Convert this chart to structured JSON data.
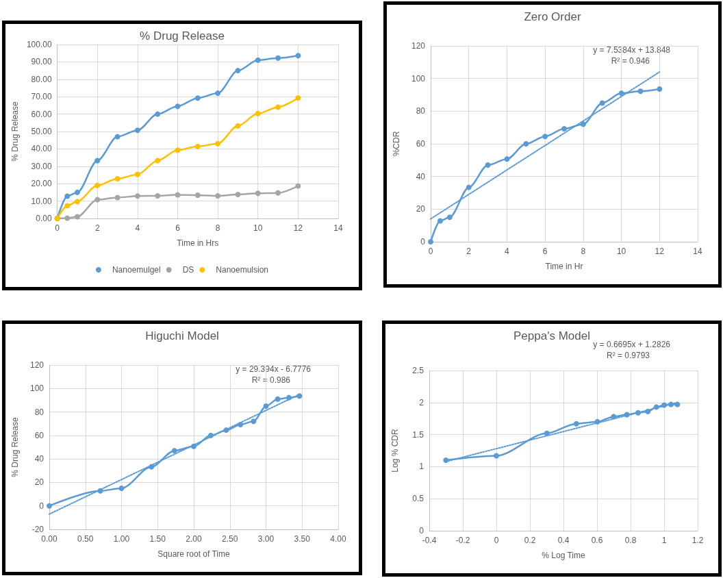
{
  "chart_data": [
    {
      "type": "line",
      "title": "% Drug Release",
      "xlabel": "Time in Hrs",
      "ylabel": "% Drug Release",
      "xlim": [
        0,
        14
      ],
      "xticks": [
        0,
        2,
        4,
        6,
        8,
        10,
        12,
        14
      ],
      "ylim": [
        0,
        100
      ],
      "yticks": [
        {
          "value": 0,
          "label": "0.00"
        },
        {
          "value": 10,
          "label": "10.00"
        },
        {
          "value": 20,
          "label": "20.00"
        },
        {
          "value": 30,
          "label": "30.00"
        },
        {
          "value": 40,
          "label": "40.00"
        },
        {
          "value": 50,
          "label": "50.00"
        },
        {
          "value": 60,
          "label": "60.00"
        },
        {
          "value": 70,
          "label": "70.00"
        },
        {
          "value": 80,
          "label": "80.00"
        },
        {
          "value": 90,
          "label": "90.00"
        },
        {
          "value": 100,
          "label": "100.00"
        }
      ],
      "grid": true,
      "legend": "bottom",
      "marker": "circle",
      "line_style": "solid",
      "x": [
        0,
        0.5,
        1,
        2,
        3,
        4,
        5,
        6,
        7,
        8,
        9,
        10,
        11,
        12
      ],
      "series": [
        {
          "name": "Nanoemulgel",
          "color": "#5b9bd5",
          "values": [
            0,
            12.8,
            15,
            33.3,
            47,
            50.7,
            60,
            64.5,
            69.2,
            72,
            85,
            91,
            92.2,
            93.6
          ]
        },
        {
          "name": "DS",
          "color": "#a5a5a5",
          "values": [
            0,
            0.2,
            1,
            10.8,
            12,
            12.9,
            13,
            13.6,
            13.4,
            13,
            13.8,
            14.5,
            14.7,
            18.7
          ]
        },
        {
          "name": "Nanoemulsion",
          "color": "#ffc000",
          "values": [
            0,
            7.3,
            9.7,
            19,
            22.8,
            25.3,
            33.3,
            39.3,
            41.4,
            43,
            53.2,
            60.3,
            64,
            69.3
          ]
        }
      ]
    },
    {
      "type": "line",
      "title": "Zero Order",
      "xlabel": "Time in Hr",
      "ylabel": "%CDR",
      "xlim": [
        0,
        14
      ],
      "xticks": [
        0,
        2,
        4,
        6,
        8,
        10,
        12,
        14
      ],
      "ylim": [
        0,
        120
      ],
      "yticks": [
        0,
        20,
        40,
        60,
        80,
        100,
        120
      ],
      "grid": true,
      "legend": false,
      "marker": "circle",
      "line_style": "solid",
      "annotations": [
        "y = 7.5384x + 13.848",
        "R² = 0.946"
      ],
      "series": [
        {
          "color": "#5b9bd5",
          "x": [
            0,
            0.5,
            1,
            2,
            3,
            4,
            5,
            6,
            7,
            8,
            9,
            10,
            11,
            12
          ],
          "values": [
            0,
            12.8,
            15,
            33.3,
            47,
            50.7,
            60,
            64.5,
            69.2,
            72,
            85,
            91,
            92.2,
            93.6
          ]
        },
        {
          "type": "line",
          "color": "#5b9bd5",
          "marker": "none",
          "line_style": "dotted",
          "x": [
            0,
            12
          ],
          "values": [
            14,
            104
          ]
        }
      ]
    },
    {
      "type": "line",
      "title": "Higuchi Model",
      "xlabel": "Square root of Time",
      "ylabel": "% Drug Release",
      "xlim": [
        0,
        4
      ],
      "xticks": [
        {
          "value": 0,
          "label": "0.00"
        },
        {
          "value": 0.5,
          "label": "0.50"
        },
        {
          "value": 1,
          "label": "1.00"
        },
        {
          "value": 1.5,
          "label": "1.50"
        },
        {
          "value": 2,
          "label": "2.00"
        },
        {
          "value": 2.5,
          "label": "2.50"
        },
        {
          "value": 3,
          "label": "3.00"
        },
        {
          "value": 3.5,
          "label": "3.50"
        },
        {
          "value": 4,
          "label": "4.00"
        }
      ],
      "ylim": [
        -20,
        120
      ],
      "yticks": [
        -20,
        0,
        20,
        40,
        60,
        80,
        100,
        120
      ],
      "grid": true,
      "legend": false,
      "marker": "circle",
      "line_style": "solid",
      "annotations": [
        "y = 29.394x - 6.7776",
        "R² = 0.986"
      ],
      "series": [
        {
          "color": "#5b9bd5",
          "x": [
            0,
            0.707,
            1,
            1.414,
            1.732,
            2,
            2.236,
            2.449,
            2.646,
            2.828,
            3,
            3.162,
            3.317,
            3.464
          ],
          "values": [
            0,
            12.8,
            15,
            33.3,
            47,
            50.7,
            60,
            64.5,
            69.2,
            72,
            85,
            91,
            92.2,
            93.6
          ]
        },
        {
          "type": "line",
          "color": "#5b9bd5",
          "marker": "none",
          "line_style": "dotted",
          "x": [
            0,
            3.464
          ],
          "values": [
            -7,
            95
          ]
        }
      ]
    },
    {
      "type": "line",
      "title": "Peppa's Model",
      "xlabel": "% Log Time",
      "ylabel": "Log % CDR",
      "xlim": [
        -0.4,
        1.2
      ],
      "xticks": [
        -0.4,
        -0.2,
        0,
        0.2,
        0.4,
        0.6,
        0.8,
        1,
        1.2
      ],
      "ylim": [
        0,
        2.5
      ],
      "yticks": [
        0,
        0.5,
        1,
        1.5,
        2,
        2.5
      ],
      "grid": true,
      "legend": false,
      "marker": "circle",
      "line_style": "solid",
      "annotations": [
        "y = 0.6695x + 1.2826",
        "R² = 0.9793"
      ],
      "series": [
        {
          "color": "#5b9bd5",
          "x": [
            -0.301,
            0,
            0.301,
            0.477,
            0.602,
            0.699,
            0.778,
            0.845,
            0.903,
            0.954,
            1,
            1.041,
            1.079
          ],
          "values": [
            1.1,
            1.17,
            1.52,
            1.67,
            1.7,
            1.78,
            1.81,
            1.84,
            1.86,
            1.93,
            1.96,
            1.97,
            1.97
          ]
        },
        {
          "type": "line",
          "color": "#5b9bd5",
          "marker": "none",
          "line_style": "dotted",
          "x": [
            -0.301,
            1.079
          ],
          "values": [
            1.08,
            2.0
          ]
        }
      ]
    }
  ]
}
